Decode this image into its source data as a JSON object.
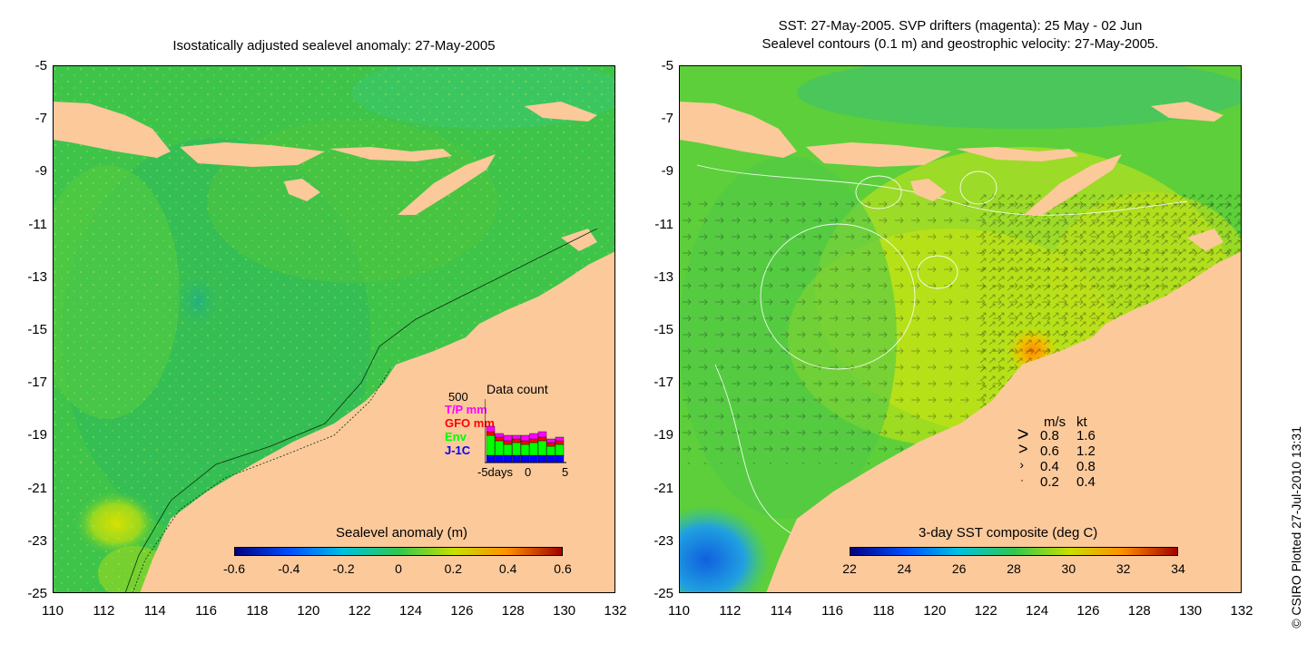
{
  "left_panel": {
    "title": "Isostatically adjusted sealevel anomaly: 27-May-2005",
    "colorbar": {
      "label": "Sealevel anomaly (m)",
      "ticks": [
        "-0.6",
        "-0.4",
        "-0.2",
        "0",
        "0.2",
        "0.4",
        "0.6"
      ]
    },
    "data_count": {
      "title": "Data count",
      "ymax_label": "500",
      "legend": [
        {
          "name": "T/P mm",
          "color": "#ff00ff"
        },
        {
          "name": "GFO mm",
          "color": "#ff0000"
        },
        {
          "name": "Env",
          "color": "#00ff00"
        },
        {
          "name": "J-1C",
          "color": "#0000ff"
        }
      ],
      "x_ticks": [
        "-5days",
        "0",
        "5"
      ]
    }
  },
  "right_panel": {
    "title_line1": "SST: 27-May-2005. SVP drifters (magenta): 25 May - 02 Jun",
    "title_line2": "Sealevel contours (0.1 m) and geostrophic velocity: 27-May-2005.",
    "colorbar": {
      "label": "3-day SST composite (deg C)",
      "ticks": [
        "22",
        "24",
        "26",
        "28",
        "30",
        "32",
        "34"
      ]
    },
    "velocity_legend": {
      "header_ms": "m/s",
      "header_kt": "kt",
      "rows": [
        {
          "ms": "0.8",
          "kt": "1.6"
        },
        {
          "ms": "0.6",
          "kt": "1.2"
        },
        {
          "ms": "0.4",
          "kt": "0.8"
        },
        {
          "ms": "0.2",
          "kt": "0.4"
        }
      ]
    }
  },
  "axes": {
    "y_ticks": [
      "-5",
      "-7",
      "-9",
      "-11",
      "-13",
      "-15",
      "-17",
      "-19",
      "-21",
      "-23",
      "-25"
    ],
    "x_ticks": [
      "110",
      "112",
      "114",
      "116",
      "118",
      "120",
      "122",
      "124",
      "126",
      "128",
      "130",
      "132"
    ]
  },
  "credit": "© CSIRO Plotted 27-Jul-2010 13:31",
  "colors": {
    "land": "#fcc99b",
    "ocean_left": "#3fc44a",
    "ocean_right": "#5ccf3a"
  }
}
